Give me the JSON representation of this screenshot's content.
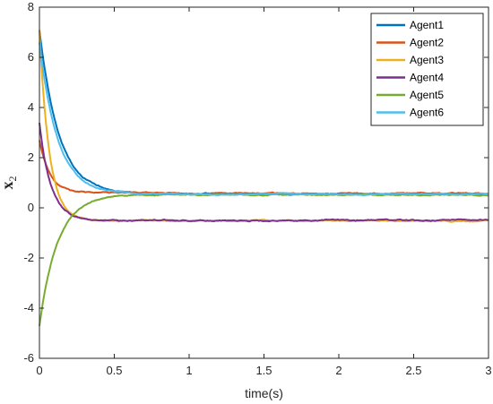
{
  "chart_data": {
    "type": "line",
    "title": "",
    "xlabel": "time(s)",
    "ylabel": {
      "main": "x",
      "sub": "2"
    },
    "xlim": [
      0,
      3
    ],
    "ylim": [
      -6,
      8
    ],
    "xticks": [
      0,
      0.5,
      1,
      1.5,
      2,
      2.5,
      3
    ],
    "xtick_labels": [
      "0",
      "0.5",
      "1",
      "1.5",
      "2",
      "2.5",
      "3"
    ],
    "yticks": [
      -6,
      -4,
      -2,
      0,
      2,
      4,
      6,
      8
    ],
    "ytick_labels": [
      "-6",
      "-4",
      "-2",
      "0",
      "2",
      "4",
      "6",
      "8"
    ],
    "grid": false,
    "legend_position": "top-right",
    "series": [
      {
        "name": "Agent1",
        "color": "#0072BD",
        "initial": 7.1,
        "final": 0.55,
        "tau": 0.13
      },
      {
        "name": "Agent2",
        "color": "#D95319",
        "initial": 2.7,
        "final": 0.58,
        "tau": 0.07
      },
      {
        "name": "Agent3",
        "color": "#EDB120",
        "initial": 7.1,
        "final": -0.52,
        "tau": 0.065
      },
      {
        "name": "Agent4",
        "color": "#7E2F8E",
        "initial": 3.4,
        "final": -0.5,
        "tau": 0.075
      },
      {
        "name": "Agent5",
        "color": "#77AC30",
        "initial": -4.7,
        "final": 0.52,
        "tau": 0.12
      },
      {
        "name": "Agent6",
        "color": "#4DBEEE",
        "initial": 6.6,
        "final": 0.55,
        "tau": 0.12
      }
    ]
  }
}
